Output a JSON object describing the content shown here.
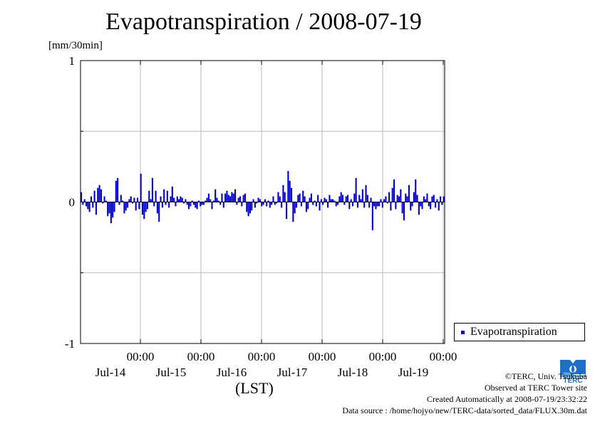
{
  "title": "Evapotranspiration / 2008-07-19",
  "units": "[mm/30min]",
  "chart_data": {
    "type": "bar",
    "title": "Evapotranspiration / 2008-07-19",
    "xlabel": "(LST)",
    "ylabel": "[mm/30min]",
    "ylim": [
      -1,
      1
    ],
    "yticks": [
      "1",
      "0",
      "-1"
    ],
    "xticks": [
      {
        "time": "00:00",
        "date": "Jul-14"
      },
      {
        "time": "00:00",
        "date": "Jul-15"
      },
      {
        "time": "00:00",
        "date": "Jul-16"
      },
      {
        "time": "00:00",
        "date": "Jul-17"
      },
      {
        "time": "00:00",
        "date": "Jul-18"
      },
      {
        "time": "00:00",
        "date": "Jul-19"
      }
    ],
    "grid": true,
    "legend_position": "bottom-right",
    "series": [
      {
        "name": "Evapotranspiration",
        "color": "#0000cc",
        "values": [
          0.07,
          -0.02,
          0.02,
          -0.03,
          -0.05,
          -0.07,
          0.04,
          -0.04,
          0.08,
          -0.09,
          0.1,
          0.12,
          0.09,
          -0.01,
          0.04,
          0.01,
          -0.1,
          -0.08,
          -0.15,
          -0.11,
          -0.07,
          0.15,
          0.17,
          -0.02,
          0.05,
          0.01,
          -0.08,
          -0.06,
          -0.04,
          0.02,
          0.04,
          -0.01,
          0.03,
          -0.06,
          0.03,
          -0.05,
          0.2,
          -0.09,
          -0.12,
          -0.07,
          -0.05,
          0.08,
          0.02,
          0.17,
          -0.03,
          0.08,
          -0.08,
          -0.14,
          0.04,
          -0.04,
          0.09,
          -0.02,
          0.08,
          -0.04,
          0.04,
          0.11,
          0.03,
          -0.03,
          0.04,
          0.02,
          0.04,
          0.03,
          -0.01,
          0.02,
          -0.02,
          -0.05,
          -0.03,
          0.01,
          -0.02,
          -0.04,
          -0.05,
          0.01,
          -0.03,
          -0.02,
          -0.02,
          0.01,
          0.03,
          0.06,
          0.02,
          -0.05,
          0.01,
          0.09,
          0.03,
          0.01,
          -0.02,
          0.06,
          -0.04,
          0.06,
          0.08,
          0.05,
          0.04,
          0.07,
          0.06,
          0.09,
          -0.02,
          0.03,
          0.04,
          -0.03,
          0.05,
          0.06,
          -0.07,
          -0.1,
          -0.08,
          -0.06,
          0.02,
          -0.04,
          -0.01,
          0.03,
          0.02,
          -0.03,
          -0.02,
          0.02,
          -0.03,
          0.01,
          -0.04,
          -0.02,
          0.04,
          -0.02,
          -0.01,
          0.07,
          0.04,
          -0.04,
          0.12,
          0.07,
          -0.12,
          0.22,
          0.15,
          0.1,
          -0.14,
          -0.08,
          -0.04,
          0.05,
          0.06,
          -0.03,
          0.08,
          0.04,
          -0.07,
          -0.05,
          0.03,
          0.06,
          -0.02,
          0.01,
          -0.03,
          0.05,
          -0.06,
          0.02,
          -0.02,
          0.03,
          0.02,
          -0.04,
          0.05,
          0.02,
          0.02,
          0.01,
          -0.03,
          -0.02,
          0.04,
          0.07,
          0.05,
          -0.02,
          0.04,
          0.05,
          -0.05,
          0.02,
          -0.03,
          0.06,
          0.17,
          -0.04,
          0.05,
          0.02,
          0.09,
          -0.04,
          0.12,
          0.05,
          -0.04,
          0.03,
          -0.2,
          -0.03,
          -0.05,
          -0.03,
          -0.03,
          0.02,
          -0.04,
          0.02,
          0.04,
          -0.01,
          0.07,
          -0.06,
          0.1,
          0.16,
          -0.05,
          0.05,
          0.04,
          0.09,
          -0.08,
          -0.13,
          0.06,
          0.04,
          0.12,
          -0.06,
          -0.03,
          0.07,
          0.16,
          0.05,
          -0.09,
          -0.03,
          -0.05,
          0.04,
          0.02,
          0.06,
          -0.03,
          -0.05,
          0.04,
          0.05,
          -0.04,
          0.02,
          -0.06,
          0.04,
          -0.02,
          0.04
        ]
      }
    ]
  },
  "legend": {
    "label": "Evapotranspiration",
    "color": "#0000cc"
  },
  "credits": {
    "copyright": "©TERC, Univ. Tsukuba",
    "site": "Observed at TERC Tower site",
    "created": "Created Automatically at 2008-07-19/23:32:22",
    "source": "Data source : /home/hojyo/new/TERC-data/sorted_data/FLUX.30m.dat"
  },
  "logo": {
    "text": "TERC"
  }
}
